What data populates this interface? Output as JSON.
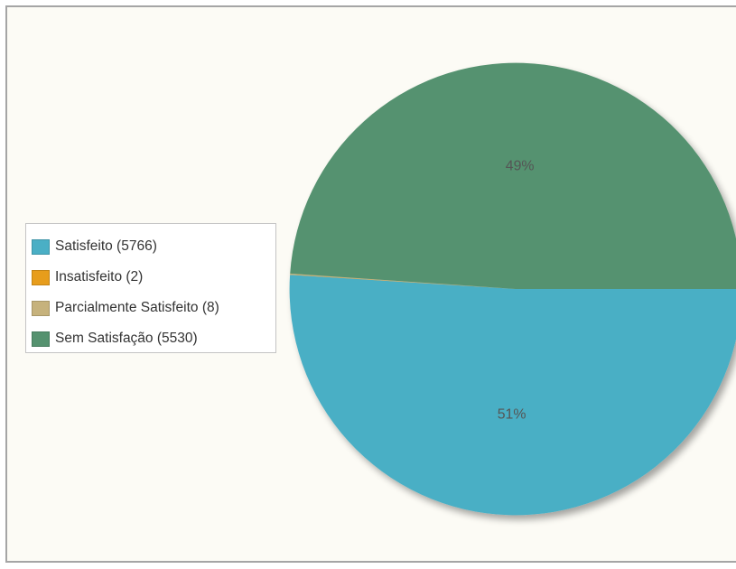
{
  "chart_data": {
    "type": "pie",
    "slices": [
      {
        "label": "Satisfeito (5766)",
        "value": 5766,
        "percent_label": "51%",
        "color": "#4aafc5"
      },
      {
        "label": "Insatisfeito (2)",
        "value": 2,
        "percent_label": "",
        "color": "#e79d1c"
      },
      {
        "label": "Parcialmente Satisfeito (8)",
        "value": 8,
        "percent_label": "",
        "color": "#c6b27c"
      },
      {
        "label": "Sem Satisfação (5530)",
        "value": 5530,
        "percent_label": "49%",
        "color": "#55926f"
      }
    ],
    "legend_position": "left"
  }
}
